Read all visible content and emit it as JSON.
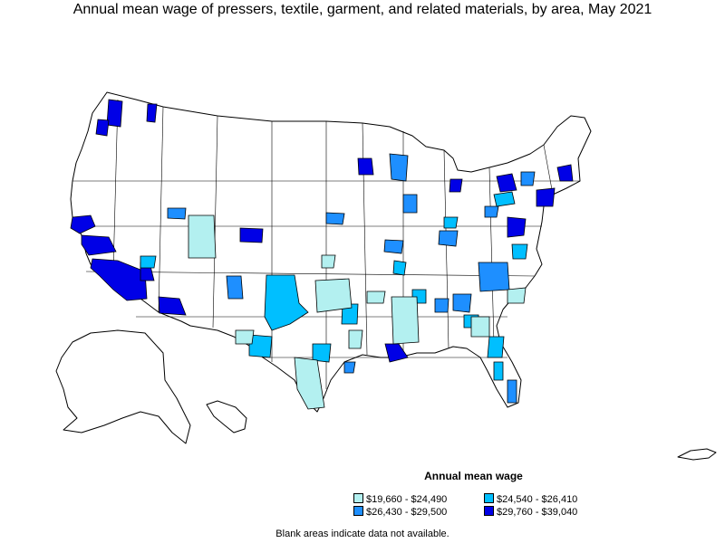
{
  "title": "Annual mean wage of pressers, textile, garment, and related materials, by area, May 2021",
  "legend": {
    "title": "Annual mean wage",
    "items": [
      {
        "label": "$19,660 - $24,490",
        "color": "#b3f0f0"
      },
      {
        "label": "$24,540 - $26,410",
        "color": "#00bfff"
      },
      {
        "label": "$26,430 - $29,500",
        "color": "#1e8fff"
      },
      {
        "label": "$29,760 - $39,040",
        "color": "#0000e6"
      }
    ]
  },
  "note": "Blank areas indicate data not available.",
  "colors": {
    "outline": "#000000",
    "no_data": "#ffffff"
  }
}
